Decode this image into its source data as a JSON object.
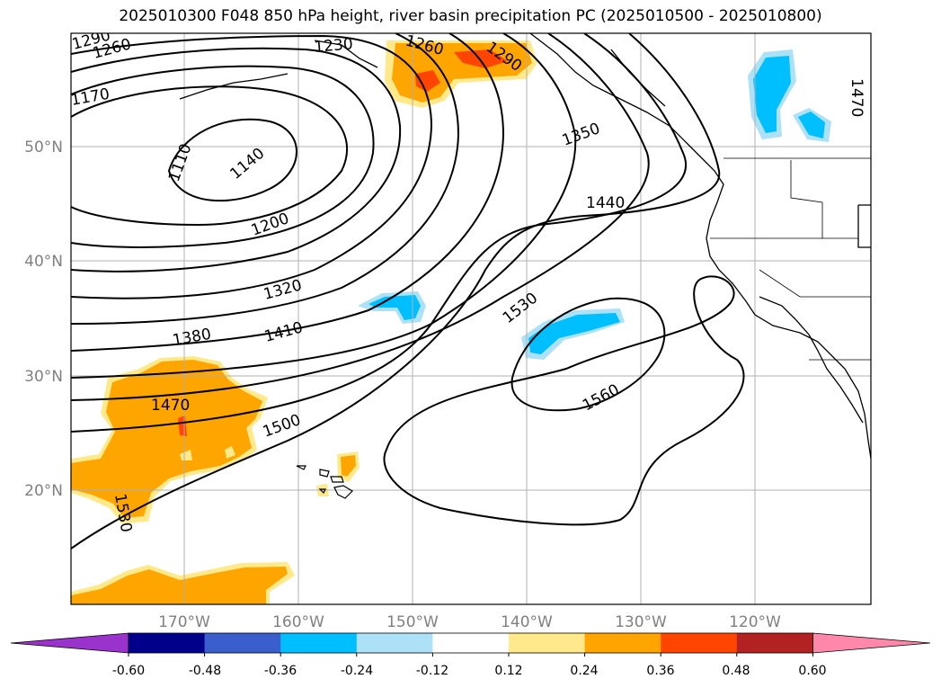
{
  "title": "2025010300 F048 850 hPa height, river basin precipitation PC (2025010500 - 2025010800)",
  "latitude_labels": [
    "50°N",
    "40°N",
    "30°N",
    "20°N"
  ],
  "longitude_labels": [
    "170°W",
    "160°W",
    "150°W",
    "140°W",
    "130°W",
    "120°W"
  ],
  "contour_labels": [
    "1290",
    "1260",
    "1170",
    "1110",
    "1140",
    "1230",
    "1260",
    "1290",
    "1350",
    "1440",
    "1200",
    "1320",
    "1380",
    "1410",
    "1530",
    "1470",
    "1500",
    "1560",
    "1530",
    "1470"
  ],
  "colorbar": {
    "colors": [
      "#9933cc",
      "#00008b",
      "#3a5fcd",
      "#00bfff",
      "#ade1f7",
      "#ffffff",
      "#ffe98a",
      "#ffa500",
      "#ff4500",
      "#b22222",
      "#ff88aa"
    ],
    "tick_labels": [
      "-0.60",
      "-0.48",
      "-0.36",
      "-0.24",
      "-0.12",
      "0.12",
      "0.24",
      "0.36",
      "0.48",
      "0.60"
    ]
  },
  "colors": {
    "positive_light": "#ffe98a",
    "positive_mid": "#ffa500",
    "positive_high": "#ff4500",
    "negative_light": "#ade1f7",
    "negative_mid": "#00bfff",
    "grid": "#b0b0b0",
    "axis_label": "#808080"
  }
}
